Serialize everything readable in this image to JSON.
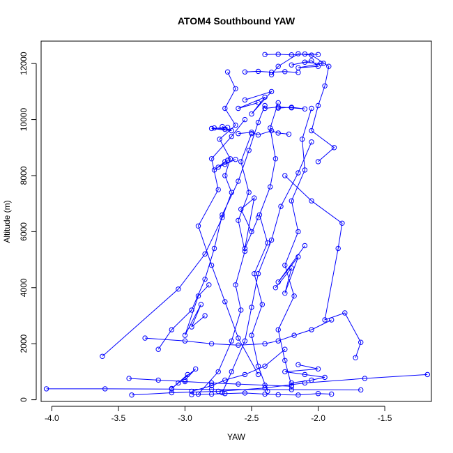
{
  "chart_data": {
    "type": "scatter",
    "title": "ATOM4 Southbound YAW",
    "xlabel": "YAW",
    "ylabel": "Altitude (m)",
    "xlim": [
      -4.08,
      -1.15
    ],
    "ylim": [
      -60,
      12800
    ],
    "x_ticks": [
      -4.0,
      -3.5,
      -3.0,
      -2.5,
      -2.0,
      -1.5
    ],
    "x_tick_labels": [
      "-4.0",
      "-3.5",
      "-3.0",
      "-2.5",
      "-2.0",
      "-1.5"
    ],
    "y_ticks": [
      0,
      2000,
      4000,
      6000,
      8000,
      10000,
      12000
    ],
    "y_tick_labels": [
      "0",
      "2000",
      "4000",
      "6000",
      "8000",
      "10000",
      "12000"
    ],
    "grid": false,
    "legend": "none",
    "marker": "open-circle",
    "connected": true,
    "colors": {
      "series": "#0000ff",
      "axis": "#000000"
    },
    "series": [
      {
        "x": [
          -4.04,
          -3.6,
          -3.1,
          -2.8,
          -2.2,
          -1.68
        ],
        "y": [
          390,
          390,
          380,
          370,
          360,
          350
        ]
      },
      {
        "x": [
          -3.4,
          -3.1,
          -2.75,
          -2.4,
          -2.1,
          -1.65,
          -1.18
        ],
        "y": [
          170,
          250,
          300,
          420,
          600,
          760,
          900
        ]
      },
      {
        "x": [
          -3.62,
          -3.05,
          -2.85,
          -2.72,
          -2.65,
          -2.7,
          -2.66,
          -2.74,
          -2.62,
          -2.7,
          -2.62,
          -2.68
        ],
        "y": [
          1550,
          3950,
          5200,
          6500,
          7400,
          8000,
          8600,
          9300,
          9800,
          10400,
          11100,
          11700
        ]
      },
      {
        "x": [
          -3.2,
          -3.1,
          -2.95,
          -2.85,
          -2.78,
          -2.72,
          -2.6,
          -2.52,
          -2.45,
          -2.4
        ],
        "y": [
          1800,
          2500,
          3200,
          4300,
          5400,
          6600,
          7800,
          8900,
          9900,
          10500
        ]
      },
      {
        "x": [
          -2.38,
          -2.45,
          -2.5,
          -2.42,
          -2.48,
          -2.38,
          -2.44,
          -2.36,
          -2.32,
          -2.36,
          -2.3
        ],
        "y": [
          300,
          1200,
          2300,
          3400,
          4500,
          5600,
          6600,
          7600,
          8600,
          9700,
          10600
        ]
      },
      {
        "x": [
          -2.2,
          -2.25,
          -2.3,
          -2.18,
          -2.25,
          -2.15,
          -2.2,
          -2.1,
          -2.12,
          -2.05
        ],
        "y": [
          500,
          1400,
          2500,
          3700,
          4800,
          6000,
          7100,
          8200,
          9300,
          10400
        ]
      },
      {
        "x": [
          -1.72,
          -1.68,
          -1.8,
          -1.95,
          -1.85,
          -1.82,
          -2.05,
          -2.25
        ],
        "y": [
          1500,
          2050,
          3100,
          2850,
          5400,
          6300,
          7100,
          8000
        ]
      },
      {
        "x": [
          -2.9,
          -2.75,
          -2.65,
          -2.58,
          -2.62,
          -2.55,
          -2.6,
          -2.52,
          -2.58,
          -2.5
        ],
        "y": [
          200,
          1000,
          2100,
          3200,
          4100,
          5300,
          6400,
          7400,
          8500,
          9500
        ]
      },
      {
        "x": [
          -2.35,
          -2.3,
          -2.15,
          -2.05,
          -1.92,
          -1.95,
          -2.0,
          -2.05,
          -1.88,
          -2.0
        ],
        "y": [
          11600,
          11900,
          12350,
          12300,
          11900,
          11200,
          10500,
          9600,
          9000,
          8500
        ]
      },
      {
        "x": [
          -2.55,
          -2.65,
          -2.8,
          -2.75,
          -2.9,
          -2.8,
          -2.7,
          -2.6,
          -2.45
        ],
        "y": [
          10000,
          9400,
          8600,
          7500,
          6200,
          4800,
          3500,
          2200,
          900
        ]
      },
      {
        "x": [
          -2.05,
          -2.15,
          -2.28,
          -2.35,
          -2.45,
          -2.5,
          -2.55,
          -2.65,
          -2.72
        ],
        "y": [
          9200,
          8100,
          6900,
          5700,
          4500,
          3300,
          2100,
          1000,
          250
        ]
      },
      {
        "x": [
          -3.3,
          -3.0,
          -2.8,
          -2.6,
          -2.4,
          -2.3,
          -2.18,
          -2.05,
          -1.9
        ],
        "y": [
          2200,
          2100,
          2000,
          1950,
          2000,
          2100,
          2300,
          2500,
          2850
        ]
      },
      {
        "x": [
          -2.25,
          -2.4,
          -2.55,
          -2.7,
          -2.8,
          -2.95
        ],
        "y": [
          1800,
          1200,
          900,
          700,
          500,
          300
        ]
      },
      {
        "x": [
          -3.42,
          -3.2,
          -3.0,
          -2.8,
          -2.6,
          -2.4,
          -2.2
        ],
        "y": [
          760,
          700,
          650,
          600,
          560,
          520,
          480
        ]
      },
      {
        "x": [
          -2.95,
          -2.8,
          -2.7,
          -2.55,
          -2.4,
          -2.3,
          -2.15,
          -2.0,
          -1.9
        ],
        "y": [
          180,
          200,
          220,
          240,
          200,
          180,
          170,
          220,
          200
        ]
      },
      {
        "x": [
          -2.7,
          -2.78,
          -2.68,
          -2.75,
          -2.62,
          -2.7
        ],
        "y": [
          8500,
          8200,
          8550,
          8300,
          8580,
          8400
        ]
      },
      {
        "x": [
          -2.6,
          -2.5,
          -2.45,
          -2.35,
          -2.3,
          -2.22
        ],
        "y": [
          9500,
          9550,
          9450,
          9600,
          9520,
          9480
        ]
      },
      {
        "x": [
          -2.4,
          -2.3,
          -2.2,
          -2.1,
          -2.2,
          -2.3
        ],
        "y": [
          10400,
          10450,
          10420,
          10380,
          10440,
          10410
        ]
      },
      {
        "x": [
          -2.55,
          -2.45,
          -2.35,
          -2.25,
          -2.15
        ],
        "y": [
          11700,
          11720,
          11690,
          11710,
          11680
        ]
      },
      {
        "x": [
          -2.4,
          -2.3,
          -2.2,
          -2.1,
          -2.0
        ],
        "y": [
          12320,
          12330,
          12310,
          12340,
          12320
        ]
      },
      {
        "x": [
          -1.98,
          -2.1,
          -2.2,
          -2.05,
          -2.0,
          -2.15,
          -1.96
        ],
        "y": [
          12000,
          12050,
          11950,
          12100,
          11900,
          11850,
          12010
        ]
      },
      {
        "x": [
          -2.32,
          -2.2,
          -2.25,
          -2.15,
          -2.3,
          -2.1
        ],
        "y": [
          4000,
          4700,
          3800,
          5100,
          4200,
          5500
        ]
      },
      {
        "x": [
          -2.85,
          -2.95,
          -2.88,
          -3.0,
          -2.9,
          -2.82
        ],
        "y": [
          3000,
          2600,
          3400,
          2300,
          3700,
          4100
        ]
      },
      {
        "x": [
          -2.2,
          -2.05,
          -1.95,
          -2.1,
          -2.25,
          -2.0,
          -2.15
        ],
        "y": [
          600,
          700,
          800,
          900,
          1000,
          1100,
          1250
        ]
      },
      {
        "x": [
          -2.78,
          -2.7,
          -2.72,
          -2.65,
          -2.8,
          -2.68
        ],
        "y": [
          9700,
          9650,
          9750,
          9600,
          9680,
          9720
        ]
      },
      {
        "x": [
          -2.5,
          -2.58,
          -2.48,
          -2.55,
          -2.45
        ],
        "y": [
          6000,
          6800,
          7200,
          5400,
          6500
        ]
      },
      {
        "x": [
          -3.05,
          -2.98,
          -3.1,
          -2.92,
          -3.0
        ],
        "y": [
          600,
          900,
          400,
          1100,
          700
        ]
      },
      {
        "x": [
          -2.45,
          -2.6,
          -2.4,
          -2.5,
          -2.35,
          -2.55
        ],
        "y": [
          10600,
          10400,
          10800,
          10200,
          11000,
          10700
        ]
      }
    ]
  }
}
